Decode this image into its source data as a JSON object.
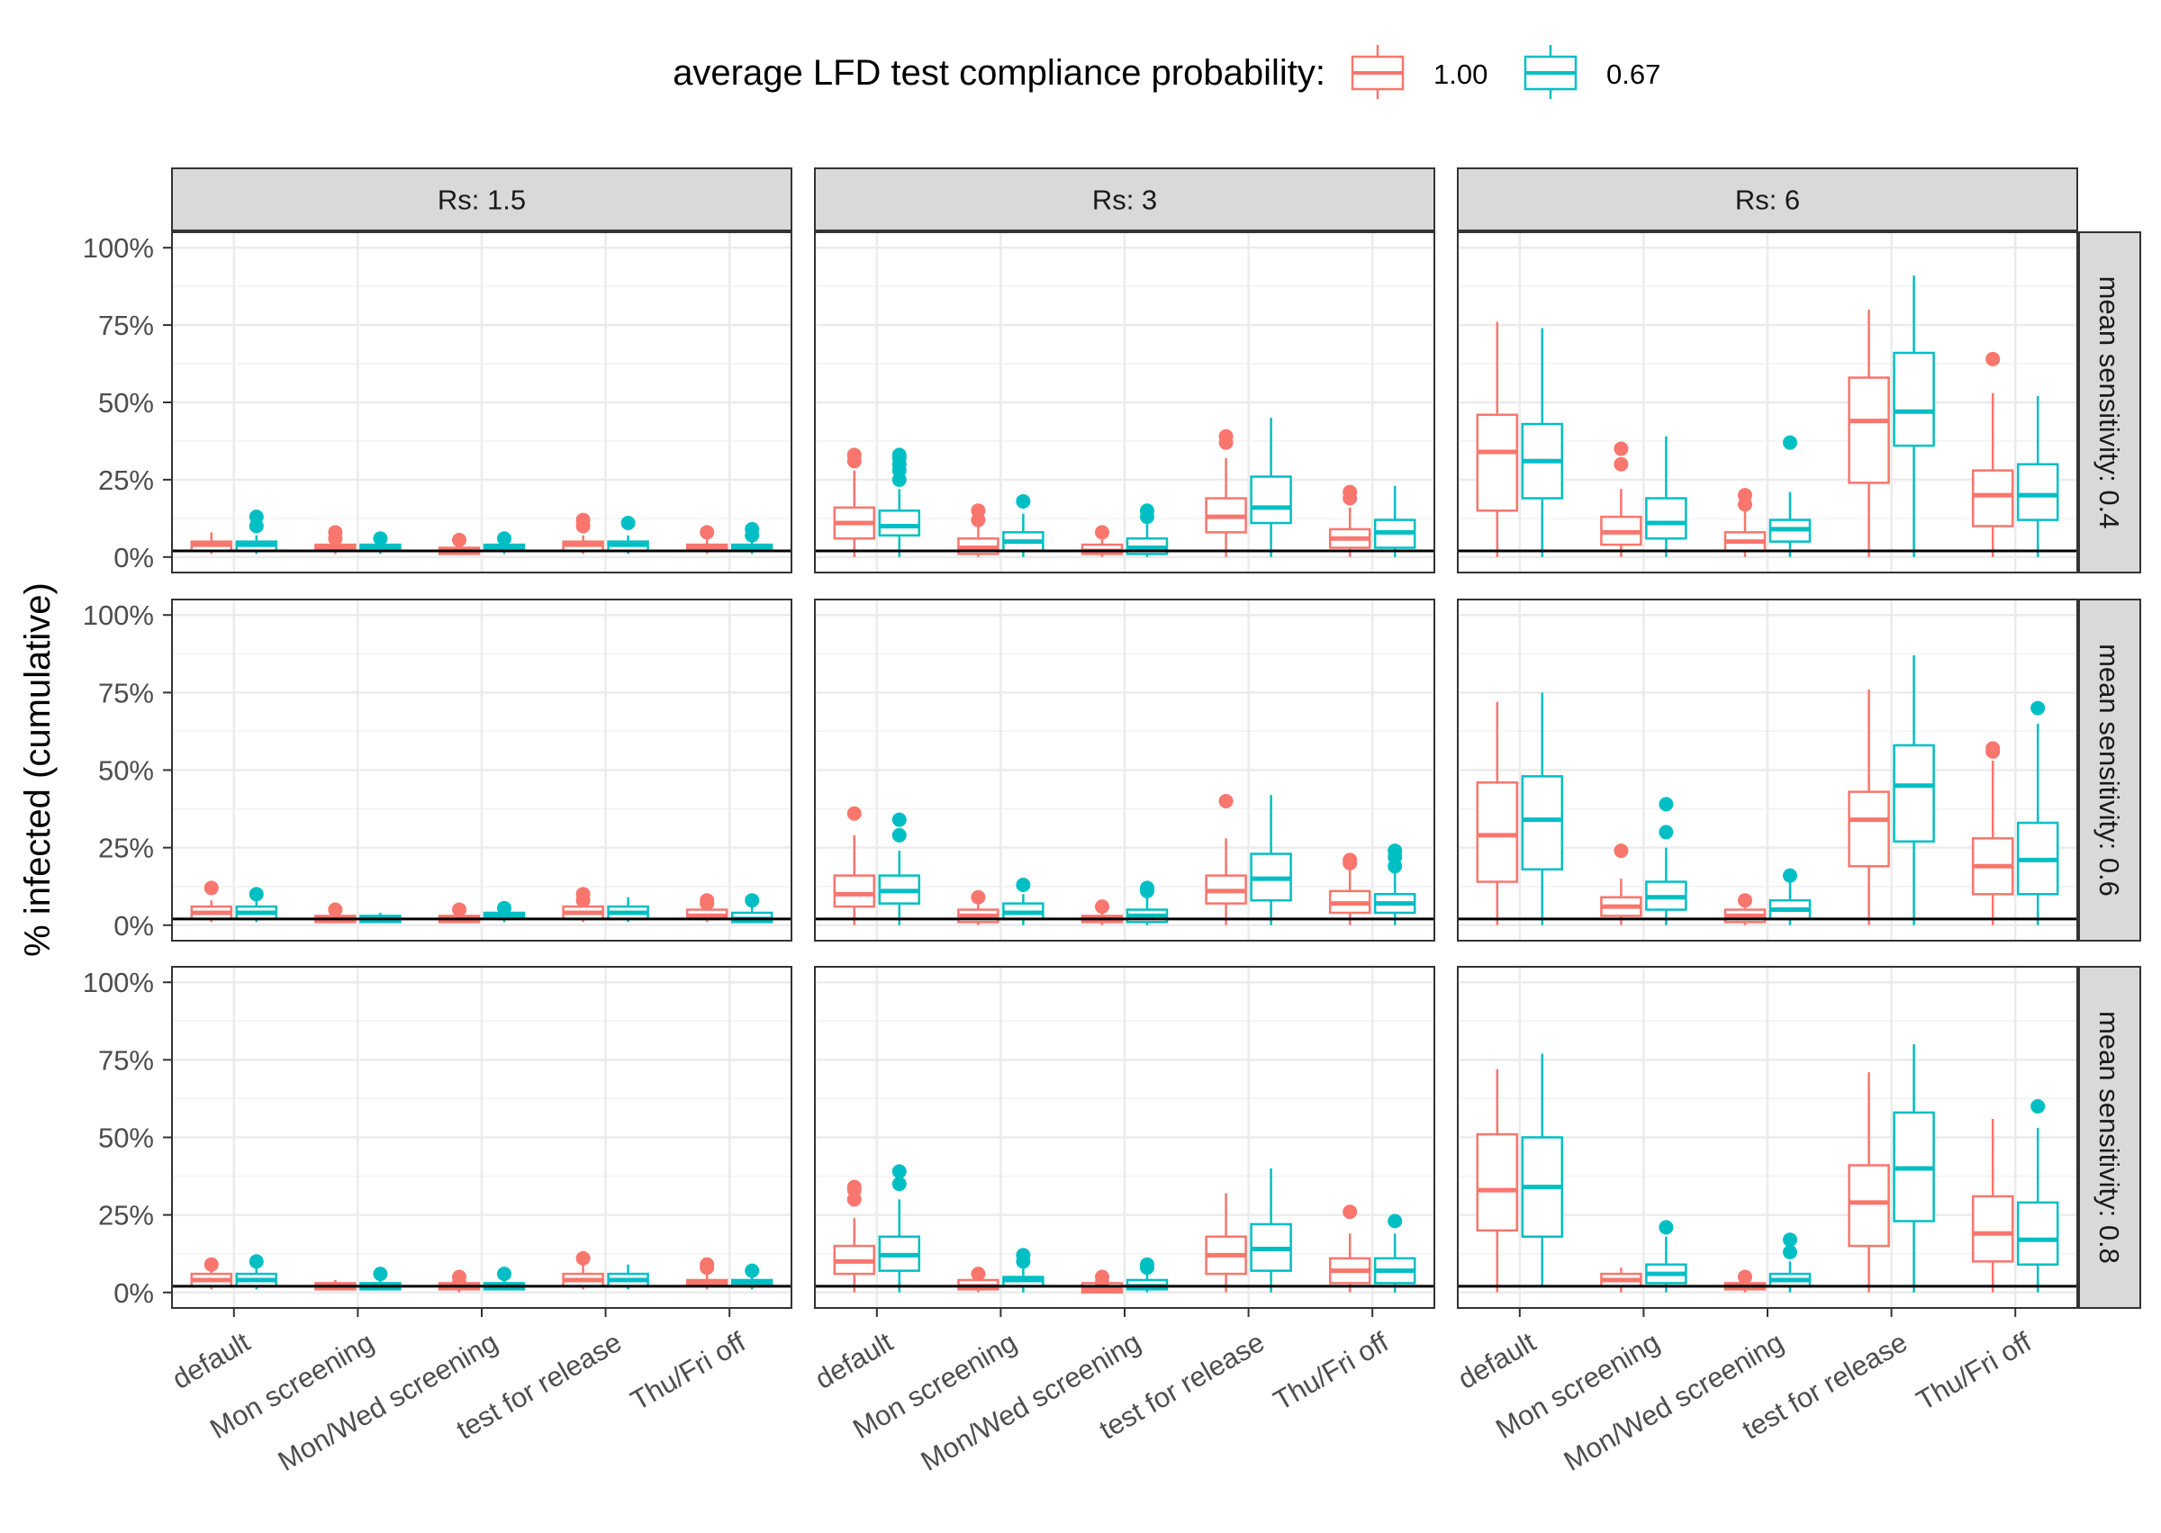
{
  "chart_data": {
    "type": "box",
    "ylabel": "% infected (cumulative)",
    "xlabel": "",
    "y_tick_labels": [
      "0%",
      "25%",
      "50%",
      "75%",
      "100%"
    ],
    "y_ticks": [
      0,
      25,
      50,
      75,
      100
    ],
    "ylim": [
      -5,
      105
    ],
    "reference_line_y": 2,
    "grid": true,
    "legend": {
      "title": "average LFD test compliance probability:",
      "position": "top",
      "entries": [
        {
          "label": "1.00",
          "color": "#F8766D"
        },
        {
          "label": "0.67",
          "color": "#00BFC4"
        }
      ]
    },
    "categories": [
      "default",
      "Mon screening",
      "Mon/Wed screening",
      "test for release",
      "Thu/Fri off"
    ],
    "columns": [
      "Rs: 1.5",
      "Rs: 3",
      "Rs: 6"
    ],
    "rows": [
      "mean sensitivity: 0.4",
      "mean sensitivity: 0.6",
      "mean sensitivity: 0.8"
    ],
    "colors": {
      "1.00": "#F8766D",
      "0.67": "#00BFC4"
    },
    "panels": [
      {
        "row": 0,
        "col": 0,
        "boxes": [
          [
            [
              1,
              2,
              4,
              5,
              8
            ],
            [
              1,
              2,
              4,
              5,
              7
            ]
          ],
          [
            [
              1,
              2,
              3,
              4,
              6
            ],
            [
              1,
              2,
              3,
              4,
              5
            ]
          ],
          [
            [
              1,
              1,
              2,
              3,
              4
            ],
            [
              1,
              2,
              3,
              4,
              5
            ]
          ],
          [
            [
              1,
              2,
              4,
              5,
              7
            ],
            [
              1,
              2,
              4,
              5,
              7
            ]
          ],
          [
            [
              1,
              2,
              3,
              4,
              6
            ],
            [
              1,
              2,
              3,
              4,
              6
            ]
          ]
        ],
        "outliers": [
          [
            [],
            [
              10,
              13
            ]
          ],
          [
            [
              6,
              8
            ],
            [
              6
            ]
          ],
          [
            [
              5.5
            ],
            [
              6
            ]
          ],
          [
            [
              10,
              12
            ],
            [
              11
            ]
          ],
          [
            [
              8
            ],
            [
              7,
              9
            ]
          ]
        ]
      },
      {
        "row": 0,
        "col": 1,
        "boxes": [
          [
            [
              0,
              6,
              11,
              16,
              28
            ],
            [
              0,
              7,
              10,
              15,
              22
            ]
          ],
          [
            [
              0,
              1,
              3,
              6,
              11
            ],
            [
              0,
              2,
              5,
              8,
              14
            ]
          ],
          [
            [
              0,
              1,
              2,
              4,
              7
            ],
            [
              0,
              1,
              3,
              6,
              12
            ]
          ],
          [
            [
              0,
              8,
              13,
              19,
              32
            ],
            [
              0,
              11,
              16,
              26,
              45
            ]
          ],
          [
            [
              0,
              3,
              6,
              9,
              16
            ],
            [
              0,
              3,
              8,
              12,
              23
            ]
          ]
        ],
        "outliers": [
          [
            [
              31,
              33
            ],
            [
              25,
              28,
              30,
              32,
              33
            ]
          ],
          [
            [
              12,
              15
            ],
            [
              18
            ]
          ],
          [
            [
              8
            ],
            [
              13,
              15
            ]
          ],
          [
            [
              37,
              39
            ],
            []
          ],
          [
            [
              19,
              21
            ],
            []
          ]
        ]
      },
      {
        "row": 0,
        "col": 2,
        "boxes": [
          [
            [
              0,
              15,
              34,
              46,
              76
            ],
            [
              0,
              19,
              31,
              43,
              74
            ]
          ],
          [
            [
              0,
              4,
              8,
              13,
              22
            ],
            [
              0,
              6,
              11,
              19,
              39
            ]
          ],
          [
            [
              0,
              2,
              5,
              8,
              15
            ],
            [
              0,
              5,
              9,
              12,
              21
            ]
          ],
          [
            [
              0,
              24,
              44,
              58,
              80
            ],
            [
              0,
              36,
              47,
              66,
              91
            ]
          ],
          [
            [
              0,
              10,
              20,
              28,
              53
            ],
            [
              0,
              12,
              20,
              30,
              52
            ]
          ]
        ],
        "outliers": [
          [
            [],
            []
          ],
          [
            [
              30,
              35
            ],
            []
          ],
          [
            [
              17,
              20
            ],
            [
              37
            ]
          ],
          [
            [],
            []
          ],
          [
            [
              64
            ],
            []
          ]
        ]
      },
      {
        "row": 1,
        "col": 0,
        "boxes": [
          [
            [
              1,
              2,
              4,
              6,
              8
            ],
            [
              1,
              2,
              4,
              6,
              8
            ]
          ],
          [
            [
              1,
              1,
              2,
              3,
              4
            ],
            [
              1,
              1,
              2,
              3,
              4
            ]
          ],
          [
            [
              1,
              1,
              2,
              3,
              4
            ],
            [
              1,
              2,
              3,
              4,
              5
            ]
          ],
          [
            [
              1,
              2,
              4,
              6,
              8
            ],
            [
              1,
              2,
              4,
              6,
              9
            ]
          ],
          [
            [
              1,
              2,
              3,
              5,
              6
            ],
            [
              1,
              1,
              2,
              4,
              6
            ]
          ]
        ],
        "outliers": [
          [
            [
              12
            ],
            [
              10
            ]
          ],
          [
            [
              5
            ],
            []
          ],
          [
            [
              5
            ],
            [
              5.5
            ]
          ],
          [
            [
              8,
              10
            ],
            []
          ],
          [
            [
              7,
              8
            ],
            [
              8
            ]
          ]
        ]
      },
      {
        "row": 1,
        "col": 1,
        "boxes": [
          [
            [
              0,
              6,
              10,
              16,
              29
            ],
            [
              0,
              7,
              11,
              16,
              24
            ]
          ],
          [
            [
              0,
              1,
              3,
              5,
              8
            ],
            [
              0,
              2,
              4,
              7,
              10
            ]
          ],
          [
            [
              0,
              1,
              2,
              3,
              5
            ],
            [
              0,
              1,
              3,
              5,
              9
            ]
          ],
          [
            [
              0,
              7,
              11,
              16,
              28
            ],
            [
              0,
              8,
              15,
              23,
              42
            ]
          ],
          [
            [
              0,
              4,
              7,
              11,
              18
            ],
            [
              0,
              4,
              7,
              10,
              17
            ]
          ]
        ],
        "outliers": [
          [
            [
              36
            ],
            [
              29,
              34
            ]
          ],
          [
            [
              9
            ],
            [
              13
            ]
          ],
          [
            [
              6
            ],
            [
              11,
              12
            ]
          ],
          [
            [
              40
            ],
            []
          ],
          [
            [
              20,
              21
            ],
            [
              19,
              22,
              24
            ]
          ]
        ]
      },
      {
        "row": 1,
        "col": 2,
        "boxes": [
          [
            [
              0,
              14,
              29,
              46,
              72
            ],
            [
              0,
              18,
              34,
              48,
              75
            ]
          ],
          [
            [
              0,
              3,
              6,
              9,
              15
            ],
            [
              0,
              5,
              9,
              14,
              25
            ]
          ],
          [
            [
              0,
              1,
              3,
              5,
              7
            ],
            [
              0,
              2,
              5,
              8,
              14
            ]
          ],
          [
            [
              0,
              19,
              34,
              43,
              76
            ],
            [
              0,
              27,
              45,
              58,
              87
            ]
          ],
          [
            [
              0,
              10,
              19,
              28,
              53
            ],
            [
              0,
              10,
              21,
              33,
              65
            ]
          ]
        ],
        "outliers": [
          [
            [],
            []
          ],
          [
            [
              24
            ],
            [
              30,
              39
            ]
          ],
          [
            [
              8
            ],
            [
              16
            ]
          ],
          [
            [],
            []
          ],
          [
            [
              56,
              57
            ],
            [
              70
            ]
          ]
        ]
      },
      {
        "row": 2,
        "col": 0,
        "boxes": [
          [
            [
              1,
              2,
              4,
              6,
              8
            ],
            [
              1,
              2,
              4,
              6,
              8
            ]
          ],
          [
            [
              1,
              1,
              2,
              3,
              4
            ],
            [
              1,
              1,
              2,
              3,
              5
            ]
          ],
          [
            [
              0,
              1,
              2,
              3,
              4
            ],
            [
              1,
              1,
              2,
              3,
              5
            ]
          ],
          [
            [
              1,
              2,
              4,
              6,
              9
            ],
            [
              1,
              2,
              4,
              6,
              9
            ]
          ],
          [
            [
              1,
              2,
              3,
              4,
              6
            ],
            [
              1,
              2,
              3,
              4,
              6
            ]
          ]
        ],
        "outliers": [
          [
            [
              9
            ],
            [
              10
            ]
          ],
          [
            [],
            [
              6
            ]
          ],
          [
            [
              3,
              5
            ],
            [
              6
            ]
          ],
          [
            [
              11
            ],
            []
          ],
          [
            [
              8,
              9
            ],
            [
              7
            ]
          ]
        ]
      },
      {
        "row": 2,
        "col": 1,
        "boxes": [
          [
            [
              0,
              6,
              10,
              15,
              24
            ],
            [
              0,
              7,
              12,
              18,
              30
            ]
          ],
          [
            [
              0,
              1,
              2,
              4,
              6
            ],
            [
              0,
              2,
              4,
              5,
              9
            ]
          ],
          [
            [
              0,
              0,
              1,
              3,
              5
            ],
            [
              0,
              1,
              2,
              4,
              7
            ]
          ],
          [
            [
              0,
              6,
              12,
              18,
              32
            ],
            [
              0,
              7,
              14,
              22,
              40
            ]
          ],
          [
            [
              0,
              3,
              7,
              11,
              19
            ],
            [
              0,
              3,
              7,
              11,
              19
            ]
          ]
        ],
        "outliers": [
          [
            [
              30,
              33,
              34
            ],
            [
              35,
              39
            ]
          ],
          [
            [
              6
            ],
            [
              10,
              12
            ]
          ],
          [
            [
              3,
              5
            ],
            [
              8,
              9
            ]
          ],
          [
            [],
            []
          ],
          [
            [
              26
            ],
            [
              23
            ]
          ]
        ]
      },
      {
        "row": 2,
        "col": 2,
        "boxes": [
          [
            [
              0,
              20,
              33,
              51,
              72
            ],
            [
              2,
              18,
              34,
              50,
              77
            ]
          ],
          [
            [
              0,
              2,
              4,
              6,
              8
            ],
            [
              0,
              3,
              6,
              9,
              18
            ]
          ],
          [
            [
              0,
              1,
              2,
              3,
              5
            ],
            [
              0,
              2,
              4,
              6,
              10
            ]
          ],
          [
            [
              0,
              15,
              29,
              41,
              71
            ],
            [
              0,
              23,
              40,
              58,
              80
            ]
          ],
          [
            [
              0,
              10,
              19,
              31,
              56
            ],
            [
              0,
              9,
              17,
              29,
              53
            ]
          ]
        ],
        "outliers": [
          [
            [],
            []
          ],
          [
            [],
            [
              21
            ]
          ],
          [
            [
              5
            ],
            [
              13,
              17
            ]
          ],
          [
            [],
            []
          ],
          [
            [],
            [
              60
            ]
          ]
        ]
      }
    ]
  }
}
